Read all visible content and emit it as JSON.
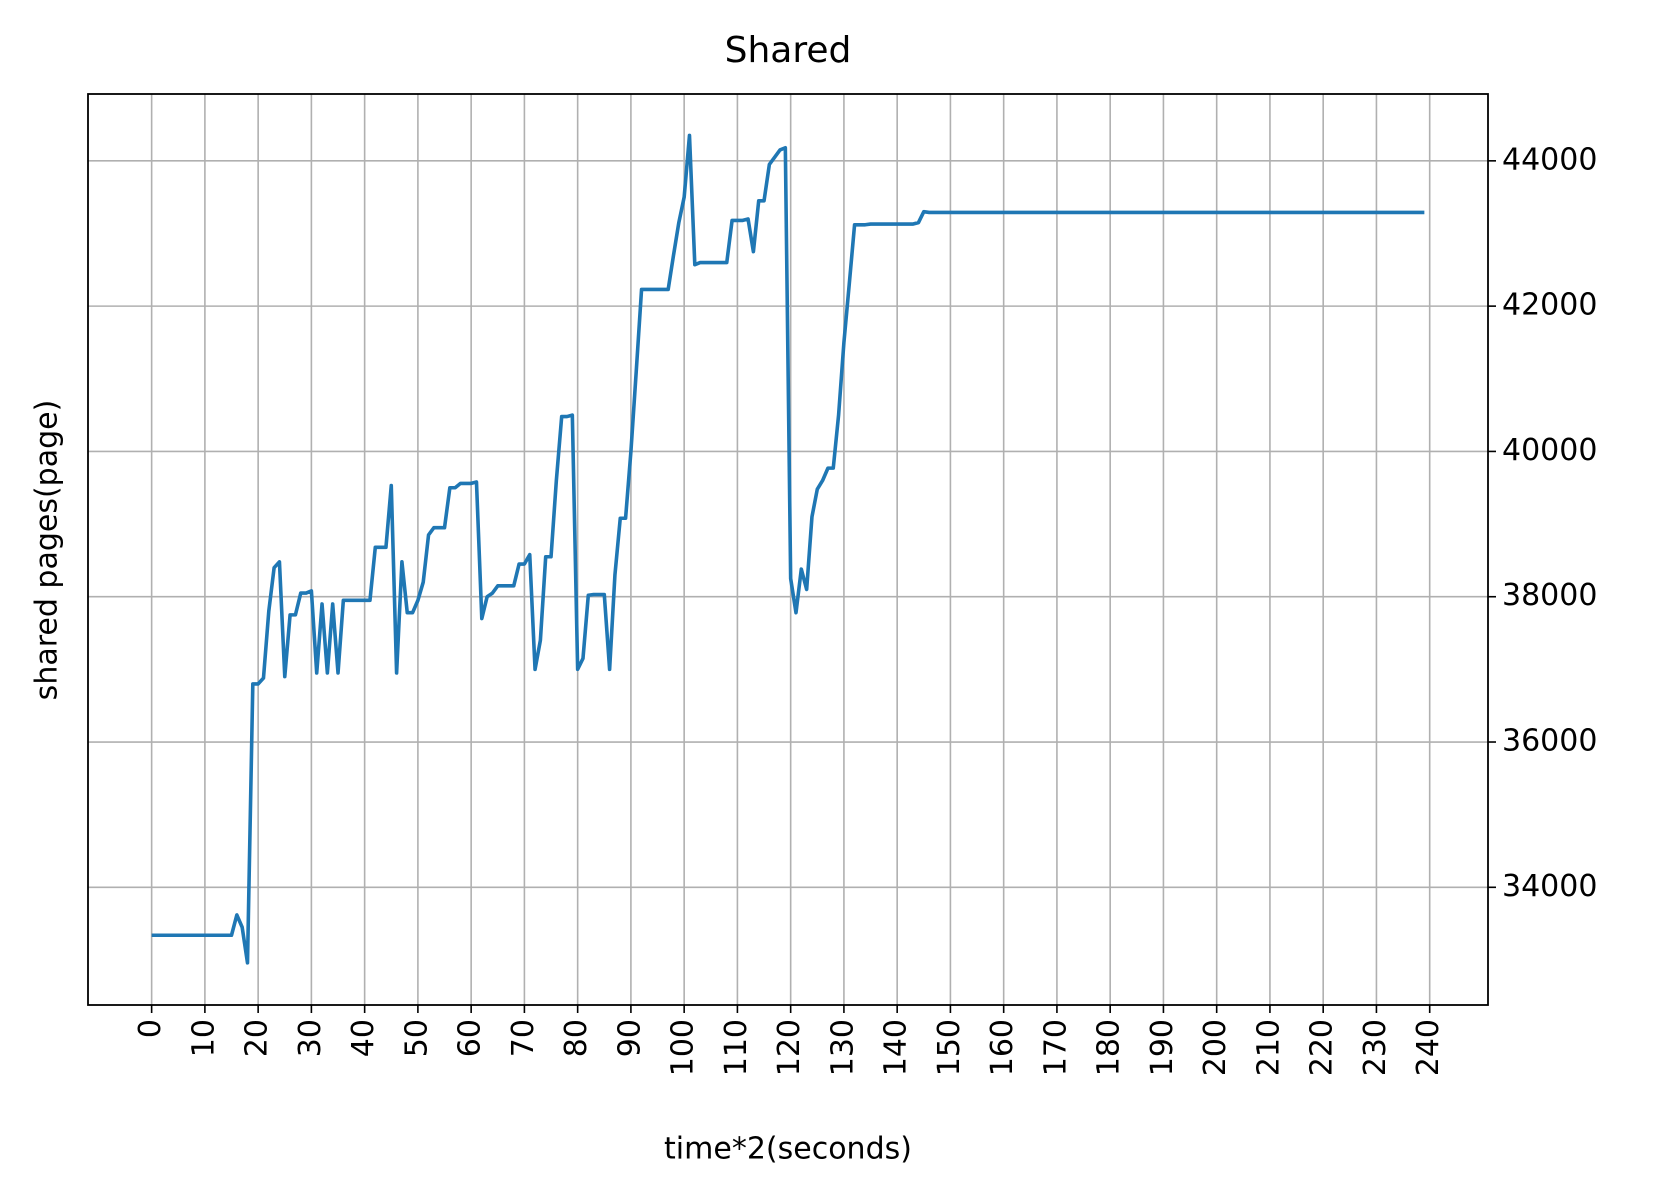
{
  "chart_data": {
    "type": "line",
    "title": "Shared",
    "xlabel": "time*2(seconds)",
    "ylabel": "shared pages(page)",
    "color": "#1f77b4",
    "grid": true,
    "y_axis_side": "right",
    "xlim": [
      -11.95,
      250.95
    ],
    "ylim": [
      32380,
      44920
    ],
    "xticks": [
      0,
      10,
      20,
      30,
      40,
      50,
      60,
      70,
      80,
      90,
      100,
      110,
      120,
      130,
      140,
      150,
      160,
      170,
      180,
      190,
      200,
      210,
      220,
      230,
      240
    ],
    "yticks": [
      34000,
      36000,
      38000,
      40000,
      42000,
      44000
    ],
    "x": [
      0,
      1,
      2,
      3,
      4,
      5,
      6,
      7,
      8,
      9,
      10,
      11,
      12,
      13,
      14,
      15,
      16,
      17,
      18,
      19,
      20,
      21,
      22,
      23,
      24,
      25,
      26,
      27,
      28,
      29,
      30,
      31,
      32,
      33,
      34,
      35,
      36,
      37,
      38,
      39,
      40,
      41,
      42,
      43,
      44,
      45,
      46,
      47,
      48,
      49,
      50,
      51,
      52,
      53,
      54,
      55,
      56,
      57,
      58,
      59,
      60,
      61,
      62,
      63,
      64,
      65,
      66,
      67,
      68,
      69,
      70,
      71,
      72,
      73,
      74,
      75,
      76,
      77,
      78,
      79,
      80,
      81,
      82,
      83,
      84,
      85,
      86,
      87,
      88,
      89,
      90,
      91,
      92,
      93,
      94,
      95,
      96,
      97,
      98,
      99,
      100,
      101,
      102,
      103,
      104,
      105,
      106,
      107,
      108,
      109,
      110,
      111,
      112,
      113,
      114,
      115,
      116,
      117,
      118,
      119,
      120,
      121,
      122,
      123,
      124,
      125,
      126,
      127,
      128,
      129,
      130,
      131,
      132,
      133,
      134,
      135,
      136,
      137,
      138,
      139,
      140,
      141,
      142,
      143,
      144,
      145,
      146,
      147,
      148,
      149,
      150,
      151,
      152,
      153,
      154,
      155,
      156,
      157,
      158,
      159,
      160,
      161,
      162,
      163,
      164,
      165,
      166,
      167,
      168,
      169,
      170,
      171,
      172,
      173,
      174,
      175,
      176,
      177,
      178,
      179,
      180,
      181,
      182,
      183,
      184,
      185,
      186,
      187,
      188,
      189,
      190,
      191,
      192,
      193,
      194,
      195,
      196,
      197,
      198,
      199,
      200,
      201,
      202,
      203,
      204,
      205,
      206,
      207,
      208,
      209,
      210,
      211,
      212,
      213,
      214,
      215,
      216,
      217,
      218,
      219,
      220,
      221,
      222,
      223,
      224,
      225,
      226,
      227,
      228,
      229,
      230,
      231,
      232,
      233,
      234,
      235,
      236,
      237,
      238,
      239
    ],
    "values": [
      33340,
      33340,
      33340,
      33340,
      33340,
      33340,
      33340,
      33340,
      33340,
      33340,
      33340,
      33340,
      33340,
      33340,
      33340,
      33340,
      33620,
      33450,
      32960,
      36800,
      36800,
      36880,
      37800,
      38400,
      38480,
      36900,
      37750,
      37750,
      38050,
      38050,
      38080,
      36950,
      37900,
      36950,
      37900,
      36950,
      37950,
      37950,
      37950,
      37950,
      37950,
      37950,
      38680,
      38680,
      38680,
      39530,
      36950,
      38480,
      37780,
      37780,
      37950,
      38200,
      38850,
      38950,
      38950,
      38950,
      39500,
      39500,
      39560,
      39560,
      39560,
      39580,
      37700,
      38000,
      38050,
      38150,
      38150,
      38150,
      38150,
      38450,
      38450,
      38580,
      37000,
      37400,
      38550,
      38550,
      39600,
      40480,
      40480,
      40500,
      37000,
      37150,
      38020,
      38030,
      38030,
      38030,
      37000,
      38300,
      39080,
      39080,
      40000,
      41100,
      42230,
      42230,
      42230,
      42230,
      42230,
      42230,
      42700,
      43150,
      43500,
      44350,
      42570,
      42600,
      42600,
      42600,
      42600,
      42600,
      42600,
      43180,
      43180,
      43180,
      43200,
      42750,
      43450,
      43450,
      43950,
      44050,
      44150,
      44180,
      38250,
      37780,
      38380,
      38100,
      39100,
      39480,
      39600,
      39770,
      39770,
      40500,
      41500,
      42300,
      43120,
      43120,
      43120,
      43130,
      43130,
      43130,
      43130,
      43130,
      43130,
      43130,
      43130,
      43130,
      43150,
      43300,
      43290,
      43290,
      43290,
      43290,
      43290,
      43290,
      43290,
      43290,
      43290,
      43290,
      43290,
      43290,
      43290,
      43290,
      43290,
      43290,
      43290,
      43290,
      43290,
      43290,
      43290,
      43290,
      43290,
      43290,
      43290,
      43290,
      43290,
      43290,
      43290,
      43290,
      43290,
      43290,
      43290,
      43290,
      43290,
      43290,
      43290,
      43290,
      43290,
      43290,
      43290,
      43290,
      43290,
      43290,
      43290,
      43290,
      43290,
      43290,
      43290,
      43290,
      43290,
      43290,
      43290,
      43290,
      43290,
      43290,
      43290,
      43290,
      43290,
      43290,
      43290,
      43290,
      43290,
      43290,
      43290,
      43290,
      43290,
      43290,
      43290,
      43290,
      43290,
      43290,
      43290,
      43290,
      43290,
      43290,
      43290,
      43290,
      43290,
      43290,
      43290,
      43290,
      43290,
      43290,
      43290,
      43290,
      43290,
      43290,
      43290,
      43290,
      43290,
      43290,
      43290,
      43290
    ]
  }
}
